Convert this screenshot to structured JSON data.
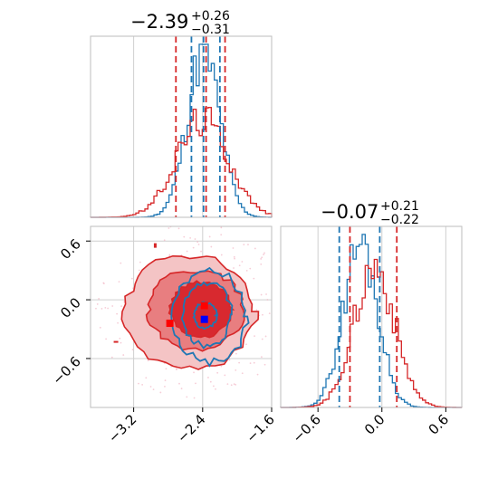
{
  "colors": {
    "blue": "#1f77b4",
    "red": "#d62728",
    "red_fill_1": "#f4c4c5",
    "red_fill_2": "#e87e80",
    "red_fill_3": "#d8292f",
    "marker_red": "#ff0000",
    "marker_blue": "#0000ff"
  },
  "chart_data": [
    {
      "id": "hist-param1",
      "type": "histogram",
      "panel": "top-left",
      "title": {
        "median": "−2.39",
        "plus": "+0.26",
        "minus": "−0.31"
      },
      "xlim": [
        -3.7,
        -1.6
      ],
      "grid": true,
      "quantiles_blue": [
        -2.53,
        -2.39,
        -2.2
      ],
      "quantiles_red": [
        -2.71,
        -2.36,
        -2.14
      ],
      "series": [
        {
          "name": "",
          "color": "blue",
          "kind": "step",
          "center": -2.39,
          "sigma": 0.19,
          "peak": 1.0
        },
        {
          "name": "",
          "color": "red",
          "kind": "step",
          "center": -2.4,
          "sigma": 0.3,
          "peak": 0.6
        }
      ]
    },
    {
      "id": "hist-param2",
      "type": "histogram",
      "panel": "bottom-right",
      "title": {
        "median": "−0.07",
        "plus": "+0.21",
        "minus": "−0.22"
      },
      "xlim": [
        -0.95,
        0.75
      ],
      "xticks": [
        -0.6,
        0.0,
        0.6
      ],
      "xtick_labels": [
        "−0.6",
        "0.0",
        "0.6"
      ],
      "grid": true,
      "quantiles_blue": [
        -0.4,
        -0.02
      ],
      "quantiles_red": [
        -0.3,
        0.14
      ],
      "series": [
        {
          "name": "",
          "color": "blue",
          "kind": "step",
          "center": -0.2,
          "sigma": 0.16,
          "peak": 1.0
        },
        {
          "name": "",
          "color": "red",
          "kind": "step",
          "center": -0.07,
          "sigma": 0.19,
          "peak": 0.85
        }
      ]
    },
    {
      "id": "scatter-2d",
      "type": "contour",
      "panel": "bottom-left",
      "xlim": [
        -3.7,
        -1.6
      ],
      "ylim": [
        -1.1,
        0.75
      ],
      "xticks": [
        -3.2,
        -2.4,
        -1.6
      ],
      "xtick_labels": [
        "−3.2",
        "−2.4",
        "−1.6"
      ],
      "yticks": [
        -0.6,
        0.0,
        0.6
      ],
      "ytick_labels": [
        "−0.6",
        "0.0",
        "0.6"
      ],
      "grid": true,
      "red_contours": [
        {
          "level": 1,
          "center": [
            -2.55,
            -0.12
          ],
          "rx": 0.75,
          "ry": 0.58
        },
        {
          "level": 2,
          "center": [
            -2.48,
            -0.1
          ],
          "rx": 0.55,
          "ry": 0.4
        },
        {
          "level": 3,
          "center": [
            -2.42,
            -0.1
          ],
          "rx": 0.36,
          "ry": 0.28
        }
      ],
      "blue_contours": [
        {
          "level": 1,
          "center": [
            -2.32,
            -0.17
          ],
          "rx": 0.42,
          "ry": 0.47
        },
        {
          "level": 2,
          "center": [
            -2.35,
            -0.15
          ],
          "rx": 0.28,
          "ry": 0.32
        },
        {
          "level": 3,
          "center": [
            -2.37,
            -0.16
          ],
          "rx": 0.13,
          "ry": 0.13
        }
      ],
      "markers": [
        {
          "color": "marker_red",
          "x": -2.78,
          "y": -0.24
        },
        {
          "color": "marker_red",
          "x": -2.38,
          "y": -0.06
        },
        {
          "color": "marker_blue",
          "x": -2.38,
          "y": -0.2
        }
      ]
    }
  ]
}
